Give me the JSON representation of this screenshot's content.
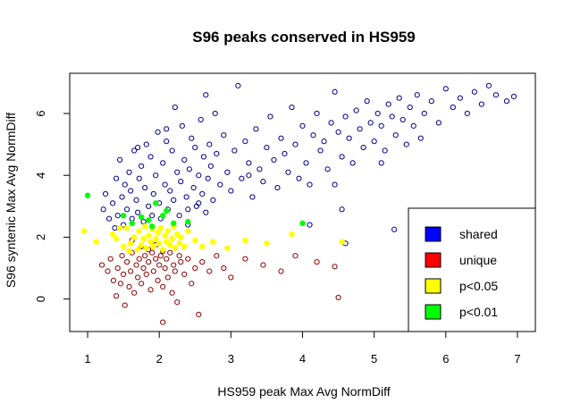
{
  "chart_data": {
    "type": "scatter",
    "title": "S96 peaks conserved in HS959",
    "xlabel": "HS959 peak Max Avg NormDiff",
    "ylabel": "S96 syntenic Max Avg NormDiff",
    "xlim": [
      0.75,
      7.25
    ],
    "ylim": [
      -1.05,
      7.3
    ],
    "xticks": [
      "1",
      "2",
      "3",
      "4",
      "5",
      "6",
      "7"
    ],
    "yticks": [
      "0",
      "2",
      "4",
      "6"
    ],
    "grid": false,
    "legend": {
      "position": "bottom-right",
      "entries": [
        {
          "label": "shared",
          "color": "#0000ff"
        },
        {
          "label": "unique",
          "color": "#ff0000"
        },
        {
          "label": "p<0.05",
          "color": "#ffff00"
        },
        {
          "label": "p<0.01",
          "color": "#00ff00"
        }
      ]
    },
    "series": [
      {
        "name": "shared",
        "marker": "open-circle",
        "color": "#00008b",
        "points": [
          [
            1.22,
            2.9
          ],
          [
            1.25,
            3.4
          ],
          [
            1.3,
            2.6
          ],
          [
            1.35,
            3.1
          ],
          [
            1.38,
            2.3
          ],
          [
            1.4,
            3.9
          ],
          [
            1.42,
            2.7
          ],
          [
            1.45,
            4.5
          ],
          [
            1.48,
            3.3
          ],
          [
            1.5,
            2.4
          ],
          [
            1.52,
            3.7
          ],
          [
            1.55,
            2.9
          ],
          [
            1.58,
            4.1
          ],
          [
            1.6,
            3.5
          ],
          [
            1.62,
            2.6
          ],
          [
            1.65,
            4.8
          ],
          [
            1.68,
            3.2
          ],
          [
            1.7,
            2.8
          ],
          [
            1.72,
            3.9
          ],
          [
            1.75,
            4.3
          ],
          [
            1.78,
            2.5
          ],
          [
            1.8,
            3.6
          ],
          [
            1.82,
            5.0
          ],
          [
            1.85,
            3.0
          ],
          [
            1.88,
            4.6
          ],
          [
            1.9,
            2.7
          ],
          [
            1.92,
            3.4
          ],
          [
            1.95,
            4.0
          ],
          [
            1.98,
            5.4
          ],
          [
            2.0,
            3.1
          ],
          [
            2.02,
            2.6
          ],
          [
            2.05,
            4.4
          ],
          [
            2.08,
            3.7
          ],
          [
            2.1,
            5.1
          ],
          [
            2.12,
            2.9
          ],
          [
            2.15,
            3.5
          ],
          [
            2.18,
            4.8
          ],
          [
            2.2,
            3.2
          ],
          [
            2.22,
            6.2
          ],
          [
            2.25,
            4.1
          ],
          [
            2.28,
            2.7
          ],
          [
            2.3,
            3.8
          ],
          [
            2.32,
            5.6
          ],
          [
            2.35,
            4.5
          ],
          [
            2.38,
            3.3
          ],
          [
            2.4,
            2.9
          ],
          [
            2.42,
            4.2
          ],
          [
            2.45,
            5.2
          ],
          [
            2.48,
            3.6
          ],
          [
            2.5,
            4.9
          ],
          [
            2.52,
            3.0
          ],
          [
            2.55,
            4.0
          ],
          [
            2.58,
            5.8
          ],
          [
            2.6,
            3.4
          ],
          [
            2.62,
            4.6
          ],
          [
            2.65,
            2.8
          ],
          [
            2.68,
            3.9
          ],
          [
            2.7,
            5.0
          ],
          [
            2.72,
            4.3
          ],
          [
            2.75,
            3.2
          ],
          [
            2.78,
            6.0
          ],
          [
            2.8,
            4.7
          ],
          [
            2.85,
            3.7
          ],
          [
            2.9,
            5.3
          ],
          [
            2.95,
            4.1
          ],
          [
            3.0,
            3.5
          ],
          [
            3.05,
            4.8
          ],
          [
            3.1,
            6.9
          ],
          [
            3.15,
            3.9
          ],
          [
            3.2,
            5.1
          ],
          [
            3.25,
            4.4
          ],
          [
            3.3,
            3.3
          ],
          [
            3.35,
            5.5
          ],
          [
            3.4,
            4.2
          ],
          [
            3.45,
            3.8
          ],
          [
            3.5,
            4.9
          ],
          [
            3.55,
            5.9
          ],
          [
            3.6,
            4.5
          ],
          [
            3.65,
            3.6
          ],
          [
            3.7,
            5.2
          ],
          [
            3.75,
            4.7
          ],
          [
            3.8,
            4.1
          ],
          [
            3.85,
            6.2
          ],
          [
            3.9,
            5.0
          ],
          [
            3.95,
            3.9
          ],
          [
            4.0,
            5.6
          ],
          [
            4.05,
            4.4
          ],
          [
            4.1,
            3.7
          ],
          [
            4.15,
            5.3
          ],
          [
            4.2,
            6.0
          ],
          [
            4.25,
            4.8
          ],
          [
            4.3,
            5.1
          ],
          [
            4.35,
            4.2
          ],
          [
            4.4,
            5.7
          ],
          [
            4.45,
            6.7
          ],
          [
            4.5,
            5.4
          ],
          [
            4.55,
            4.6
          ],
          [
            4.6,
            5.9
          ],
          [
            4.65,
            5.2
          ],
          [
            4.7,
            4.4
          ],
          [
            4.75,
            6.1
          ],
          [
            4.8,
            5.5
          ],
          [
            4.85,
            4.9
          ],
          [
            4.9,
            6.4
          ],
          [
            4.95,
            5.7
          ],
          [
            5.0,
            5.1
          ],
          [
            5.05,
            6.0
          ],
          [
            5.1,
            5.6
          ],
          [
            5.15,
            4.8
          ],
          [
            5.2,
            6.3
          ],
          [
            5.25,
            5.9
          ],
          [
            5.3,
            5.3
          ],
          [
            5.35,
            6.5
          ],
          [
            5.4,
            5.8
          ],
          [
            5.45,
            5.0
          ],
          [
            5.5,
            6.2
          ],
          [
            5.55,
            5.6
          ],
          [
            5.6,
            6.6
          ],
          [
            5.65,
            5.2
          ],
          [
            5.7,
            6.0
          ],
          [
            5.8,
            6.4
          ],
          [
            5.9,
            5.7
          ],
          [
            6.0,
            6.8
          ],
          [
            6.1,
            6.2
          ],
          [
            6.2,
            6.5
          ],
          [
            6.3,
            6.0
          ],
          [
            6.4,
            6.7
          ],
          [
            6.5,
            6.3
          ],
          [
            6.6,
            6.9
          ],
          [
            6.7,
            6.6
          ],
          [
            6.85,
            6.4
          ],
          [
            6.95,
            6.55
          ],
          [
            5.28,
            2.25
          ],
          [
            5.1,
            4.4
          ],
          [
            4.6,
            1.8
          ],
          [
            4.55,
            2.9
          ],
          [
            4.45,
            3.7
          ],
          [
            4.1,
            2.4
          ],
          [
            3.25,
            4.0
          ],
          [
            2.55,
            3.1
          ],
          [
            2.4,
            2.4
          ],
          [
            1.7,
            4.9
          ],
          [
            2.1,
            5.5
          ],
          [
            2.65,
            6.6
          ]
        ]
      },
      {
        "name": "unique",
        "marker": "open-circle",
        "color": "#8b0000",
        "points": [
          [
            1.2,
            1.1
          ],
          [
            1.28,
            0.9
          ],
          [
            1.32,
            1.3
          ],
          [
            1.36,
            0.6
          ],
          [
            1.4,
            0.1
          ],
          [
            1.42,
            1.0
          ],
          [
            1.46,
            0.5
          ],
          [
            1.48,
            1.4
          ],
          [
            1.5,
            0.8
          ],
          [
            1.52,
            -0.2
          ],
          [
            1.55,
            1.2
          ],
          [
            1.58,
            0.4
          ],
          [
            1.6,
            0.9
          ],
          [
            1.62,
            1.5
          ],
          [
            1.65,
            0.2
          ],
          [
            1.68,
            1.1
          ],
          [
            1.7,
            0.7
          ],
          [
            1.72,
            1.3
          ],
          [
            1.75,
            0.5
          ],
          [
            1.78,
            1.0
          ],
          [
            1.8,
            1.4
          ],
          [
            1.82,
            0.8
          ],
          [
            1.85,
            1.2
          ],
          [
            1.88,
            0.3
          ],
          [
            1.9,
            1.5
          ],
          [
            1.92,
            0.9
          ],
          [
            1.95,
            1.3
          ],
          [
            1.98,
            0.6
          ],
          [
            2.0,
            1.1
          ],
          [
            2.02,
            1.4
          ],
          [
            2.05,
            0.4
          ],
          [
            2.08,
            1.0
          ],
          [
            2.1,
            1.3
          ],
          [
            2.12,
            0.7
          ],
          [
            2.15,
            1.5
          ],
          [
            2.18,
            0.2
          ],
          [
            2.2,
            1.1
          ],
          [
            2.22,
            0.9
          ],
          [
            2.25,
            -0.1
          ],
          [
            2.28,
            1.4
          ],
          [
            2.3,
            1.2
          ],
          [
            2.35,
            0.8
          ],
          [
            2.4,
            1.3
          ],
          [
            2.45,
            0.5
          ],
          [
            2.5,
            1.0
          ],
          [
            2.55,
            -0.5
          ],
          [
            2.6,
            1.2
          ],
          [
            2.7,
            0.9
          ],
          [
            2.8,
            1.4
          ],
          [
            2.9,
            1.0
          ],
          [
            3.0,
            0.7
          ],
          [
            3.2,
            1.3
          ],
          [
            3.45,
            1.1
          ],
          [
            3.7,
            0.9
          ],
          [
            3.9,
            1.4
          ],
          [
            4.2,
            1.2
          ],
          [
            4.45,
            1.05
          ],
          [
            4.5,
            0.05
          ],
          [
            2.05,
            -0.75
          ],
          [
            1.62,
            1.9
          ],
          [
            1.75,
            1.7
          ],
          [
            1.85,
            1.6
          ],
          [
            1.95,
            1.75
          ],
          [
            2.05,
            1.55
          ]
        ]
      },
      {
        "name": "p<0.05",
        "marker": "filled-circle",
        "color": "#ffff00",
        "points": [
          [
            0.95,
            2.2
          ],
          [
            1.12,
            1.85
          ],
          [
            1.4,
            1.95
          ],
          [
            1.5,
            1.7
          ],
          [
            1.55,
            2.3
          ],
          [
            1.6,
            1.8
          ],
          [
            1.65,
            2.0
          ],
          [
            1.7,
            1.6
          ],
          [
            1.72,
            2.2
          ],
          [
            1.75,
            1.75
          ],
          [
            1.78,
            1.95
          ],
          [
            1.8,
            2.35
          ],
          [
            1.82,
            1.65
          ],
          [
            1.85,
            2.05
          ],
          [
            1.88,
            1.85
          ],
          [
            1.9,
            2.25
          ],
          [
            1.92,
            1.7
          ],
          [
            1.95,
            1.95
          ],
          [
            1.98,
            2.15
          ],
          [
            2.0,
            1.8
          ],
          [
            2.02,
            2.3
          ],
          [
            2.05,
            1.6
          ],
          [
            2.08,
            2.05
          ],
          [
            2.1,
            1.85
          ],
          [
            2.12,
            2.2
          ],
          [
            2.15,
            1.75
          ],
          [
            2.18,
            1.95
          ],
          [
            2.2,
            2.35
          ],
          [
            2.22,
            1.65
          ],
          [
            2.25,
            2.1
          ],
          [
            2.28,
            1.8
          ],
          [
            2.3,
            2.0
          ],
          [
            2.35,
            1.7
          ],
          [
            2.4,
            2.2
          ],
          [
            2.5,
            1.9
          ],
          [
            2.6,
            1.7
          ],
          [
            2.75,
            1.85
          ],
          [
            2.95,
            1.65
          ],
          [
            3.2,
            1.9
          ],
          [
            3.5,
            1.8
          ],
          [
            3.85,
            2.1
          ],
          [
            4.55,
            1.85
          ],
          [
            1.35,
            2.1
          ],
          [
            1.45,
            2.3
          ],
          [
            1.58,
            1.55
          ]
        ]
      },
      {
        "name": "p<0.01",
        "marker": "filled-circle",
        "color": "#00ff00",
        "points": [
          [
            1.0,
            3.35
          ],
          [
            1.5,
            2.7
          ],
          [
            1.62,
            2.45
          ],
          [
            1.75,
            2.65
          ],
          [
            1.85,
            2.55
          ],
          [
            1.95,
            3.1
          ],
          [
            2.05,
            2.7
          ],
          [
            2.2,
            2.45
          ],
          [
            2.4,
            2.5
          ],
          [
            4.0,
            2.45
          ],
          [
            1.9,
            2.35
          ],
          [
            2.1,
            2.85
          ]
        ]
      }
    ]
  }
}
